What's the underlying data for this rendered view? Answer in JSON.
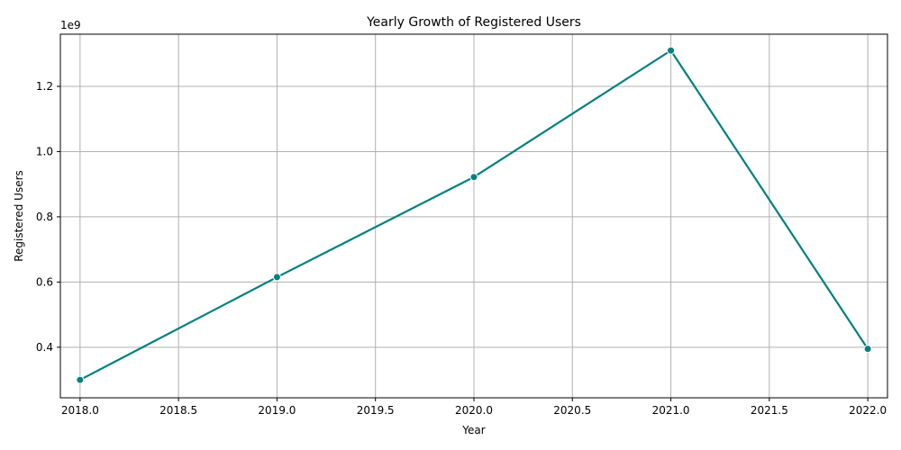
{
  "chart_data": {
    "type": "line",
    "title": "Yearly Growth of Registered Users",
    "xlabel": "Year",
    "ylabel": "Registered Users",
    "y_offset_label": "1e9",
    "x": [
      2018,
      2019,
      2020,
      2021,
      2022
    ],
    "series": [
      {
        "values": [
          300000000,
          615000000,
          922000000,
          1310000000,
          395000000
        ],
        "color": "#008080"
      }
    ],
    "xlim": [
      2017.9,
      2022.1
    ],
    "ylim": [
      0.245,
      1.36
    ],
    "x_ticks": [
      {
        "value": 2018.0,
        "label": "2018.0"
      },
      {
        "value": 2018.5,
        "label": "2018.5"
      },
      {
        "value": 2019.0,
        "label": "2019.0"
      },
      {
        "value": 2019.5,
        "label": "2019.5"
      },
      {
        "value": 2020.0,
        "label": "2020.0"
      },
      {
        "value": 2020.5,
        "label": "2020.5"
      },
      {
        "value": 2021.0,
        "label": "2021.0"
      },
      {
        "value": 2021.5,
        "label": "2021.5"
      },
      {
        "value": 2022.0,
        "label": "2022.0"
      }
    ],
    "y_ticks": [
      {
        "value": 0.4,
        "label": "0.4"
      },
      {
        "value": 0.6,
        "label": "0.6"
      },
      {
        "value": 0.8,
        "label": "0.8"
      },
      {
        "value": 1.0,
        "label": "1.0"
      },
      {
        "value": 1.2,
        "label": "1.2"
      }
    ],
    "grid": true,
    "legend": false
  }
}
